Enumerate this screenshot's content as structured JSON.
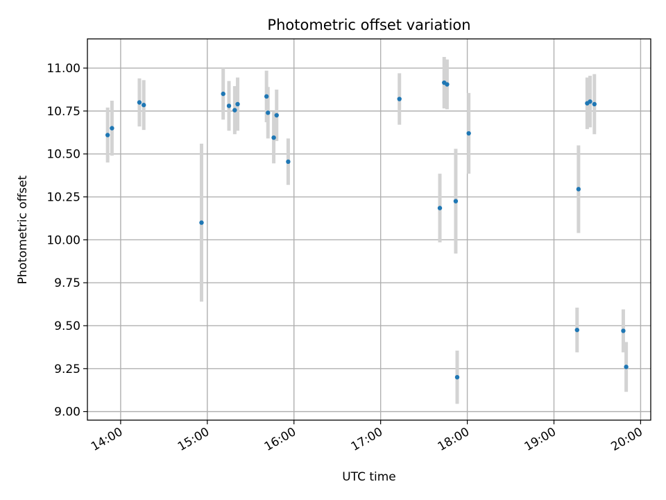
{
  "chart_data": {
    "type": "scatter",
    "title": "Photometric offset variation",
    "xlabel": "UTC time",
    "ylabel": "Photometric offset",
    "grid": true,
    "xlim": [
      "13:37",
      "20:07"
    ],
    "ylim": [
      8.95,
      11.17
    ],
    "x_ticks": [
      "14:00",
      "15:00",
      "16:00",
      "17:00",
      "18:00",
      "19:00",
      "20:00"
    ],
    "y_ticks": [
      "9.00",
      "9.25",
      "9.50",
      "9.75",
      "10.00",
      "10.25",
      "10.50",
      "10.75",
      "11.00"
    ],
    "error_bar_color": "#d3d3d3",
    "marker_color": "#1f77b4",
    "points": [
      {
        "t": "13:51",
        "y": 10.61,
        "err": 0.16
      },
      {
        "t": "13:54",
        "y": 10.65,
        "err": 0.16
      },
      {
        "t": "14:13",
        "y": 10.8,
        "err": 0.14
      },
      {
        "t": "14:16",
        "y": 10.785,
        "err": 0.145
      },
      {
        "t": "14:56",
        "y": 10.1,
        "err": 0.46
      },
      {
        "t": "15:11",
        "y": 10.85,
        "err": 0.15
      },
      {
        "t": "15:15",
        "y": 10.78,
        "err": 0.145
      },
      {
        "t": "15:19",
        "y": 10.755,
        "err": 0.14
      },
      {
        "t": "15:21",
        "y": 10.79,
        "err": 0.155
      },
      {
        "t": "15:41",
        "y": 10.835,
        "err": 0.15
      },
      {
        "t": "15:42",
        "y": 10.74,
        "err": 0.15
      },
      {
        "t": "15:46",
        "y": 10.595,
        "err": 0.15
      },
      {
        "t": "15:48",
        "y": 10.725,
        "err": 0.15
      },
      {
        "t": "15:56",
        "y": 10.455,
        "err": 0.135
      },
      {
        "t": "17:13",
        "y": 10.82,
        "err": 0.15
      },
      {
        "t": "17:41",
        "y": 10.185,
        "err": 0.2
      },
      {
        "t": "17:44",
        "y": 10.915,
        "err": 0.15
      },
      {
        "t": "17:46",
        "y": 10.905,
        "err": 0.145
      },
      {
        "t": "17:52",
        "y": 10.225,
        "err": 0.305
      },
      {
        "t": "17:53",
        "y": 9.2,
        "err": 0.155
      },
      {
        "t": "18:01",
        "y": 10.62,
        "err": 0.235
      },
      {
        "t": "19:17",
        "y": 10.295,
        "err": 0.255
      },
      {
        "t": "19:16",
        "y": 9.475,
        "err": 0.13
      },
      {
        "t": "19:23",
        "y": 10.795,
        "err": 0.15
      },
      {
        "t": "19:25",
        "y": 10.805,
        "err": 0.15
      },
      {
        "t": "19:28",
        "y": 10.79,
        "err": 0.175
      },
      {
        "t": "19:48",
        "y": 9.47,
        "err": 0.125
      },
      {
        "t": "19:50",
        "y": 9.26,
        "err": 0.145
      }
    ]
  }
}
